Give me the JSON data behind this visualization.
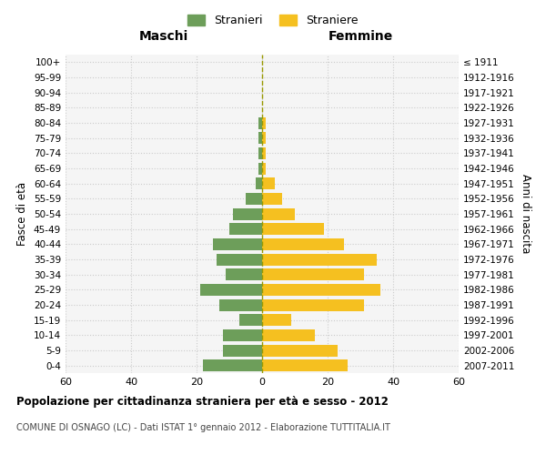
{
  "age_groups": [
    "0-4",
    "5-9",
    "10-14",
    "15-19",
    "20-24",
    "25-29",
    "30-34",
    "35-39",
    "40-44",
    "45-49",
    "50-54",
    "55-59",
    "60-64",
    "65-69",
    "70-74",
    "75-79",
    "80-84",
    "85-89",
    "90-94",
    "95-99",
    "100+"
  ],
  "birth_years": [
    "2007-2011",
    "2002-2006",
    "1997-2001",
    "1992-1996",
    "1987-1991",
    "1982-1986",
    "1977-1981",
    "1972-1976",
    "1967-1971",
    "1962-1966",
    "1957-1961",
    "1952-1956",
    "1947-1951",
    "1942-1946",
    "1937-1941",
    "1932-1936",
    "1927-1931",
    "1922-1926",
    "1917-1921",
    "1912-1916",
    "≤ 1911"
  ],
  "males": [
    18,
    12,
    12,
    7,
    13,
    19,
    11,
    14,
    15,
    10,
    9,
    5,
    2,
    1,
    1,
    1,
    1,
    0,
    0,
    0,
    0
  ],
  "females": [
    26,
    23,
    16,
    9,
    31,
    36,
    31,
    35,
    25,
    19,
    10,
    6,
    4,
    1,
    1,
    1,
    1,
    0,
    0,
    0,
    0
  ],
  "male_color": "#6d9e5a",
  "female_color": "#f5c020",
  "grid_color": "#cccccc",
  "dashed_line_color": "#999900",
  "title": "Popolazione per cittadinanza straniera per età e sesso - 2012",
  "subtitle": "COMUNE DI OSNAGO (LC) - Dati ISTAT 1° gennaio 2012 - Elaborazione TUTTITALIA.IT",
  "xlabel_left": "Maschi",
  "xlabel_right": "Femmine",
  "ylabel_left": "Fasce di età",
  "ylabel_right": "Anni di nascita",
  "legend_male": "Stranieri",
  "legend_female": "Straniere",
  "xlim": 60,
  "background_color": "#ffffff",
  "plot_bg_color": "#f5f5f5"
}
